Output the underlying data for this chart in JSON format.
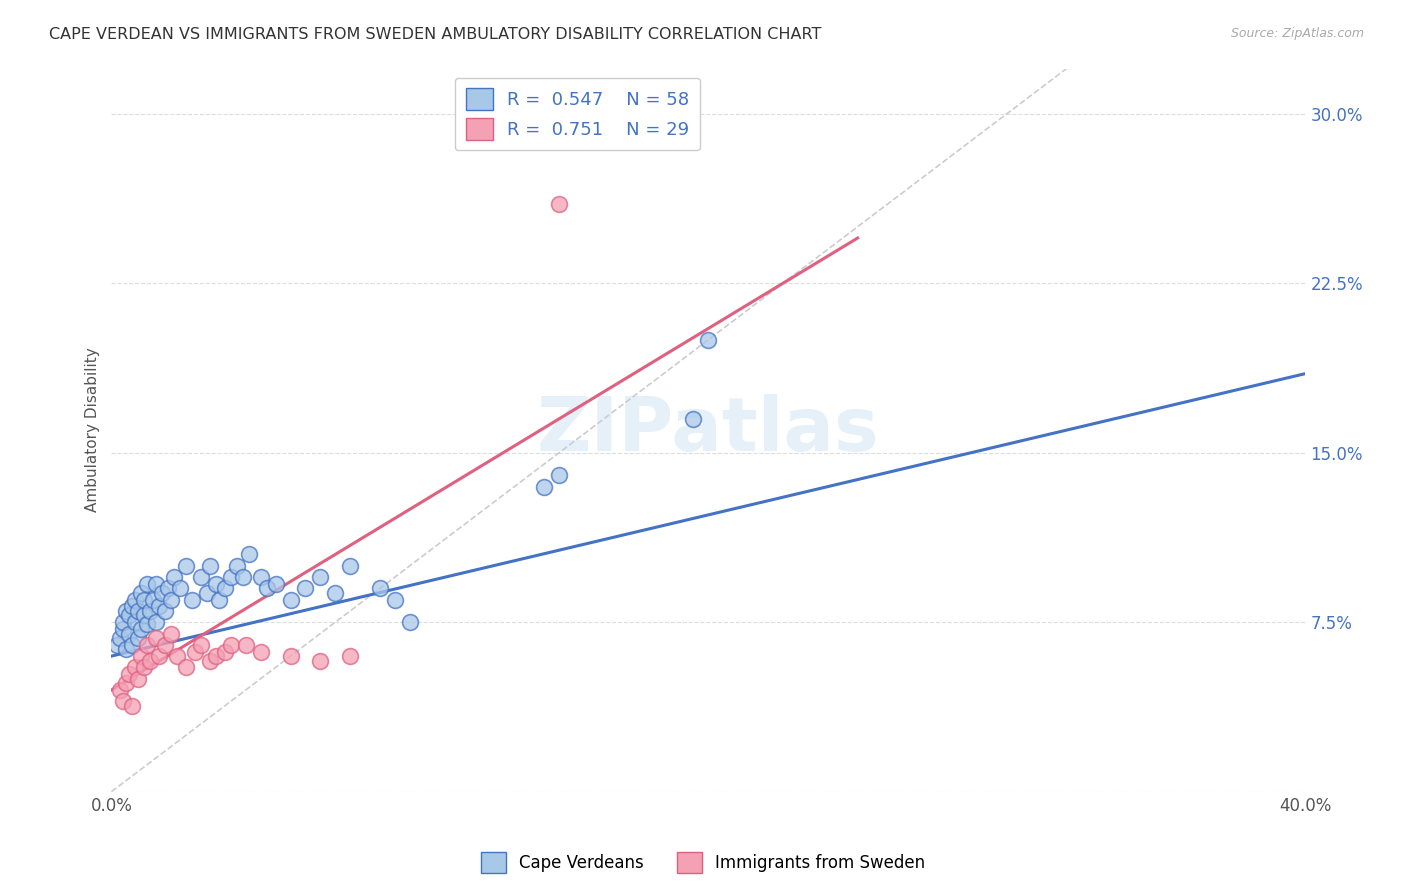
{
  "title": "CAPE VERDEAN VS IMMIGRANTS FROM SWEDEN AMBULATORY DISABILITY CORRELATION CHART",
  "source": "Source: ZipAtlas.com",
  "ylabel": "Ambulatory Disability",
  "xmin": 0.0,
  "xmax": 0.4,
  "ymin": 0.0,
  "ymax": 0.32,
  "yticks": [
    0.0,
    0.075,
    0.15,
    0.225,
    0.3
  ],
  "ytick_labels": [
    "",
    "7.5%",
    "15.0%",
    "22.5%",
    "30.0%"
  ],
  "xticks": [
    0.0,
    0.05,
    0.1,
    0.15,
    0.2,
    0.25,
    0.3,
    0.35,
    0.4
  ],
  "xtick_labels": [
    "0.0%",
    "",
    "",
    "",
    "",
    "",
    "",
    "",
    "40.0%"
  ],
  "legend1_R": "0.547",
  "legend1_N": "58",
  "legend2_R": "0.751",
  "legend2_N": "29",
  "color_blue": "#a8c8e8",
  "color_pink": "#f4a0b5",
  "color_blue_line": "#4472c4",
  "color_pink_line": "#e06080",
  "color_diag": "#cccccc",
  "watermark": "ZIPatlas",
  "cv_line_x0": 0.0,
  "cv_line_y0": 0.06,
  "cv_line_x1": 0.4,
  "cv_line_y1": 0.185,
  "sw_line_x0": 0.0,
  "sw_line_y0": 0.045,
  "sw_line_x1": 0.25,
  "sw_line_y1": 0.245,
  "cape_verdean_x": [
    0.002,
    0.003,
    0.004,
    0.004,
    0.005,
    0.005,
    0.006,
    0.006,
    0.007,
    0.007,
    0.008,
    0.008,
    0.009,
    0.009,
    0.01,
    0.01,
    0.011,
    0.011,
    0.012,
    0.012,
    0.013,
    0.014,
    0.015,
    0.015,
    0.016,
    0.017,
    0.018,
    0.019,
    0.02,
    0.021,
    0.023,
    0.025,
    0.027,
    0.03,
    0.032,
    0.033,
    0.035,
    0.036,
    0.038,
    0.04,
    0.042,
    0.044,
    0.046,
    0.05,
    0.052,
    0.055,
    0.06,
    0.065,
    0.07,
    0.075,
    0.08,
    0.09,
    0.095,
    0.1,
    0.145,
    0.15,
    0.195,
    0.2
  ],
  "cape_verdean_y": [
    0.065,
    0.068,
    0.072,
    0.075,
    0.063,
    0.08,
    0.07,
    0.078,
    0.065,
    0.082,
    0.075,
    0.085,
    0.068,
    0.08,
    0.072,
    0.088,
    0.078,
    0.085,
    0.074,
    0.092,
    0.08,
    0.085,
    0.075,
    0.092,
    0.082,
    0.088,
    0.08,
    0.09,
    0.085,
    0.095,
    0.09,
    0.1,
    0.085,
    0.095,
    0.088,
    0.1,
    0.092,
    0.085,
    0.09,
    0.095,
    0.1,
    0.095,
    0.105,
    0.095,
    0.09,
    0.092,
    0.085,
    0.09,
    0.095,
    0.088,
    0.1,
    0.09,
    0.085,
    0.075,
    0.135,
    0.14,
    0.165,
    0.2
  ],
  "sweden_x": [
    0.003,
    0.004,
    0.005,
    0.006,
    0.007,
    0.008,
    0.009,
    0.01,
    0.011,
    0.012,
    0.013,
    0.015,
    0.016,
    0.018,
    0.02,
    0.022,
    0.025,
    0.028,
    0.03,
    0.033,
    0.035,
    0.038,
    0.04,
    0.045,
    0.05,
    0.06,
    0.07,
    0.08,
    0.15
  ],
  "sweden_y": [
    0.045,
    0.04,
    0.048,
    0.052,
    0.038,
    0.055,
    0.05,
    0.06,
    0.055,
    0.065,
    0.058,
    0.068,
    0.06,
    0.065,
    0.07,
    0.06,
    0.055,
    0.062,
    0.065,
    0.058,
    0.06,
    0.062,
    0.065,
    0.065,
    0.062,
    0.06,
    0.058,
    0.06,
    0.26
  ]
}
